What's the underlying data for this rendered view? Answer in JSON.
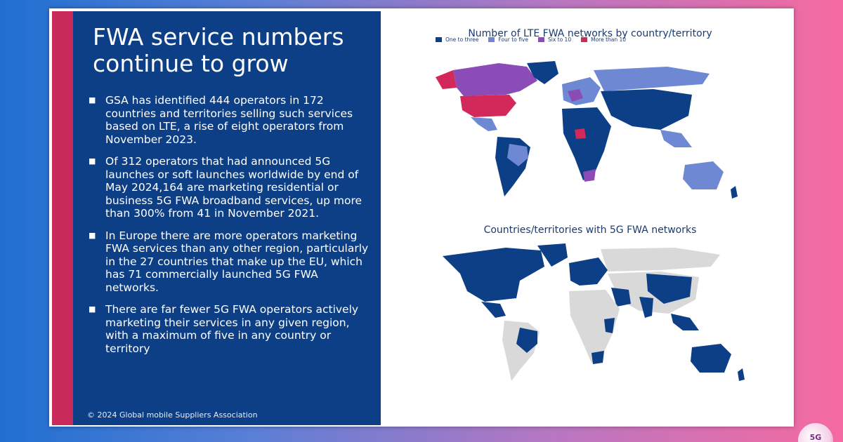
{
  "slide": {
    "title": "FWA service numbers continue to grow",
    "bullets": [
      "GSA has identified 444 operators in 172 countries and territories selling such services based on LTE, a rise of eight operators from November 2023.",
      "Of 312 operators that had announced 5G launches or soft launches worldwide by end of May 2024,164 are marketing residential or business 5G FWA broadband services, up more than 300% from 41 in November 2021.",
      "In Europe there are more operators marketing FWA services than any other region, particularly in the 27 countries that make up the EU, which has 71 commercially launched 5G FWA networks.",
      "There are far fewer 5G FWA operators actively marketing their services in any given region, with a maximum of five in any country or territory"
    ],
    "copyright": "© 2024 Global mobile Suppliers Association"
  },
  "map_lte": {
    "title": "Number of LTE FWA networks by country/territory",
    "legend": [
      {
        "label": "One to three",
        "color": "#0d3f86"
      },
      {
        "label": "Four to five",
        "color": "#6f88d4"
      },
      {
        "label": "Six to 10",
        "color": "#8c4cb8"
      },
      {
        "label": "More than 10",
        "color": "#d3285a"
      }
    ]
  },
  "map_5g": {
    "title": "Countries/territories with 5G FWA networks",
    "colors": {
      "has_5g_fwa": "#0d3f86",
      "none": "#d9d9d9"
    }
  },
  "logo": {
    "text": "5G"
  }
}
